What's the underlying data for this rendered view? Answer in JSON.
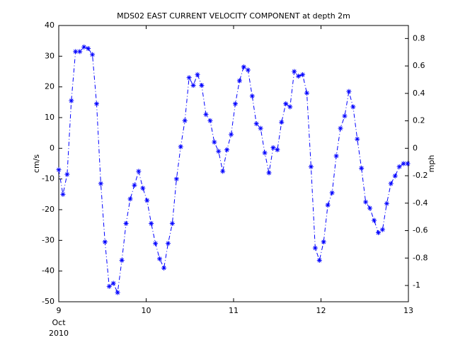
{
  "chart_data": {
    "type": "line",
    "title": "MDS02 EAST CURRENT VELOCITY COMPONENT at depth 2m",
    "ylabel": "cm/s",
    "y2label": "mph",
    "xlabel_lines": [
      "Oct",
      "2010"
    ],
    "xlim": [
      9,
      13
    ],
    "xticks": [
      9,
      10,
      11,
      12,
      13
    ],
    "ylim": [
      -50,
      40
    ],
    "yticks": [
      -50,
      -40,
      -30,
      -20,
      -10,
      0,
      10,
      20,
      30,
      40
    ],
    "y2lim": [
      -1.1185,
      0.8948
    ],
    "y2ticks": [
      -1,
      -0.8,
      -0.6,
      -0.4,
      -0.2,
      0,
      0.2,
      0.4,
      0.6,
      0.8
    ],
    "x": [
      9,
      9.048,
      9.096,
      9.144,
      9.192,
      9.241,
      9.289,
      9.337,
      9.385,
      9.433,
      9.481,
      9.529,
      9.577,
      9.625,
      9.673,
      9.722,
      9.77,
      9.818,
      9.866,
      9.914,
      9.962,
      10.01,
      10.058,
      10.106,
      10.154,
      10.203,
      10.251,
      10.299,
      10.347,
      10.395,
      10.443,
      10.491,
      10.539,
      10.587,
      10.635,
      10.684,
      10.732,
      10.78,
      10.828,
      10.876,
      10.924,
      10.972,
      11.02,
      11.068,
      11.116,
      11.165,
      11.213,
      11.261,
      11.309,
      11.357,
      11.405,
      11.453,
      11.501,
      11.549,
      11.597,
      11.646,
      11.694,
      11.742,
      11.79,
      11.838,
      11.886,
      11.934,
      11.982,
      12.03,
      12.078,
      12.127,
      12.175,
      12.223,
      12.271,
      12.319,
      12.367,
      12.415,
      12.463,
      12.511,
      12.559,
      12.608,
      12.656,
      12.704,
      12.752,
      12.8,
      12.848,
      12.896,
      12.944,
      12.992
    ],
    "series": [
      {
        "color": "#0000ff",
        "values": [
          -7,
          -15,
          -8.5,
          15.5,
          31.5,
          31.5,
          33,
          32.5,
          30.5,
          14.5,
          -11.5,
          -30.5,
          -45,
          -44,
          -47,
          -36.5,
          -24.5,
          -16.5,
          -12,
          -7.5,
          -13,
          -17,
          -24.5,
          -31,
          -36,
          -39,
          -31,
          -24.5,
          -10,
          0.5,
          9,
          23,
          20.5,
          24,
          20.5,
          11,
          9,
          2,
          -1,
          -7.5,
          -0.5,
          4.5,
          14.5,
          22,
          26.5,
          25.5,
          17,
          8,
          6.5,
          -1.5,
          -8,
          0.2,
          -0.5,
          8.5,
          14.5,
          13.5,
          25,
          23.5,
          24,
          18,
          -6,
          -32.5,
          -36.5,
          -30.5,
          -18.5,
          -14.5,
          -2.5,
          6.5,
          10.5,
          18.5,
          13.5,
          3,
          -6.5,
          -17.5,
          -19.5,
          -23.5,
          -27.5,
          -26.5,
          -18,
          -11.5,
          -9,
          -6,
          -5,
          -5
        ]
      }
    ]
  }
}
